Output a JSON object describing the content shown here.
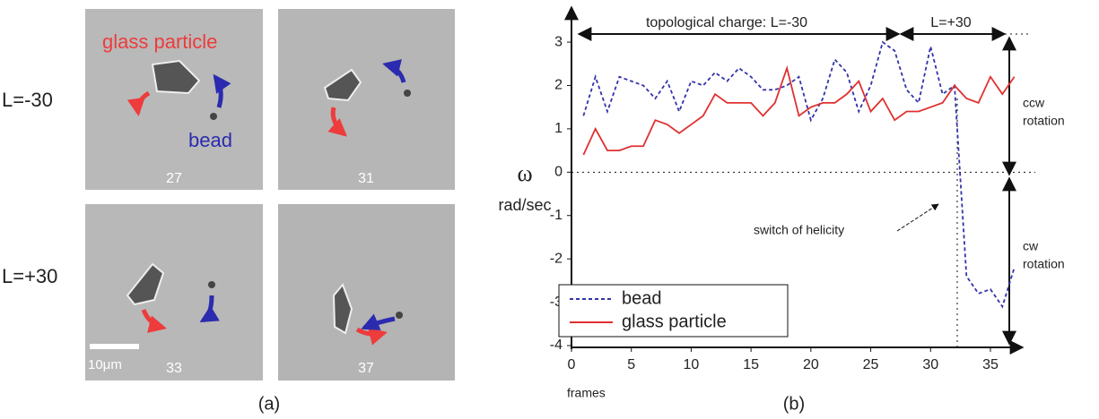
{
  "panel_a": {
    "label": "(a)",
    "rows": [
      "L=-30",
      "L=+30"
    ],
    "particle_label": "glass particle",
    "bead_label": "bead",
    "scale_bar": "10μm",
    "frames": [
      "27",
      "31",
      "33",
      "37"
    ]
  },
  "chart_data": {
    "type": "line",
    "label": "(b)",
    "y_label": "ω",
    "y_unit": "rad/sec",
    "x_label": "frames",
    "annotations": [
      "topological charge: L=-30",
      "L=+30",
      "ccw",
      "rotation",
      "cw",
      "rotation",
      "switch of helicity"
    ],
    "x": [
      1,
      2,
      3,
      4,
      5,
      6,
      7,
      8,
      9,
      10,
      11,
      12,
      13,
      14,
      15,
      16,
      17,
      18,
      19,
      20,
      21,
      22,
      23,
      24,
      25,
      26,
      27,
      28,
      29,
      30,
      31,
      32,
      33,
      34,
      35,
      36,
      37
    ],
    "series": [
      {
        "name": "bead",
        "color": "#3333aa",
        "dash": true,
        "values": [
          1.3,
          2.2,
          1.4,
          2.2,
          2.1,
          2.0,
          1.7,
          2.1,
          1.4,
          2.1,
          2.0,
          2.3,
          2.1,
          2.4,
          2.2,
          1.9,
          1.9,
          2.0,
          2.2,
          1.2,
          1.7,
          2.6,
          2.3,
          1.4,
          2.0,
          3.0,
          2.8,
          1.9,
          1.6,
          2.9,
          1.8,
          2.0,
          -2.4,
          -2.8,
          -2.7,
          -3.1,
          -2.2
        ]
      },
      {
        "name": "glass particle",
        "color": "#e03030",
        "dash": false,
        "values": [
          0.4,
          1.0,
          0.5,
          0.5,
          0.6,
          0.6,
          1.2,
          1.1,
          0.9,
          1.1,
          1.3,
          1.8,
          1.6,
          1.6,
          1.6,
          1.3,
          1.6,
          2.4,
          1.3,
          1.5,
          1.6,
          1.6,
          1.8,
          2.1,
          1.4,
          1.7,
          1.2,
          1.4,
          1.4,
          1.5,
          1.6,
          2.0,
          1.7,
          1.6,
          2.2,
          1.8,
          2.2
        ]
      }
    ],
    "xlim": [
      0,
      38
    ],
    "xticks": [
      0,
      5,
      10,
      15,
      20,
      25,
      30,
      35
    ],
    "ylim": [
      -4,
      3.6
    ],
    "yticks": [
      -4,
      -3,
      -2,
      -1,
      0,
      1,
      2,
      3
    ],
    "legend": "lower-left"
  }
}
